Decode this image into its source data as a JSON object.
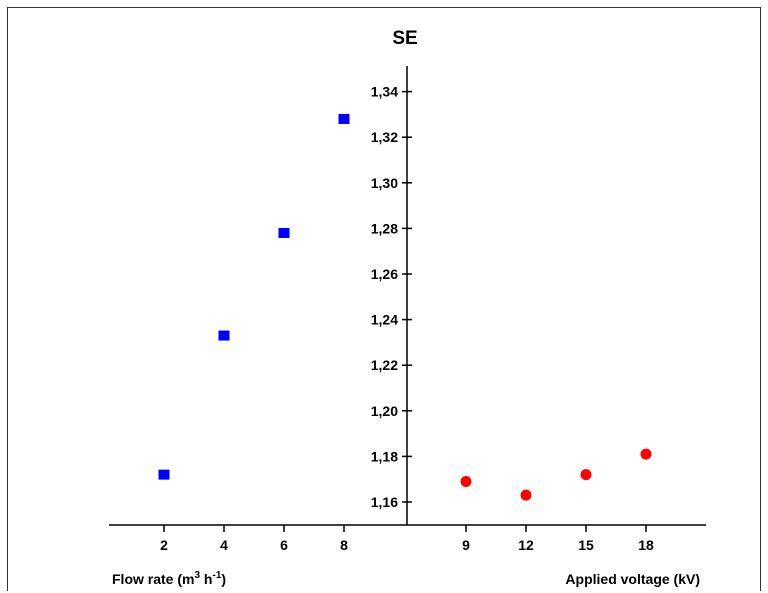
{
  "chart_data": {
    "type": "scatter",
    "title": "SE",
    "ylabel": "SE",
    "ylim": [
      1.15,
      1.345
    ],
    "yticks": [
      "1,16",
      "1,18",
      "1,20",
      "1,22",
      "1,24",
      "1,26",
      "1,28",
      "1,30",
      "1,32",
      "1,34"
    ],
    "panels": [
      {
        "xlabel": "Flow rate (m",
        "xlabel_sup1": "3",
        "xlabel_mid": " h",
        "xlabel_sup2": "-1",
        "xlabel_end": ")",
        "xticks": [
          "2",
          "4",
          "6",
          "8"
        ],
        "series": [
          {
            "marker": "square",
            "color": "#0000ff",
            "x": [
              2,
              4,
              6,
              8
            ],
            "y": [
              1.172,
              1.233,
              1.278,
              1.328
            ]
          }
        ]
      },
      {
        "xlabel": "Applied voltage (kV)",
        "xticks": [
          "9",
          "12",
          "15",
          "18"
        ],
        "series": [
          {
            "marker": "circle",
            "color": "#ff0000",
            "x": [
              9,
              12,
              15,
              18
            ],
            "y": [
              1.169,
              1.163,
              1.172,
              1.181
            ]
          }
        ]
      }
    ]
  }
}
